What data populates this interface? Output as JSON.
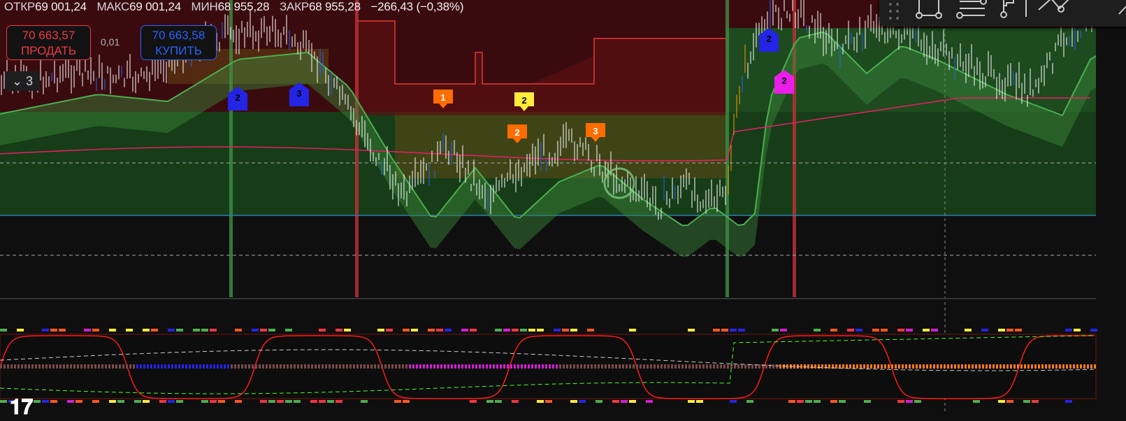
{
  "legend": {
    "open_label": "ОТКР",
    "open": "69 001,24",
    "high_label": "МАКС",
    "high": "69 001,24",
    "low_label": "МИН",
    "low": "68 955,28",
    "close_label": "ЗАКР",
    "close": "68 955,28",
    "change": "−266,43 (−0,38%)"
  },
  "trade": {
    "sell_price": "70 663,57",
    "sell_label": "ПРОДАТЬ",
    "spread": "0,01",
    "buy_price": "70 663,58",
    "buy_label": "КУПИТЬ"
  },
  "collapse": {
    "count": "3"
  },
  "markers": [
    {
      "label": "1",
      "color": "#ff6d00"
    },
    {
      "label": "2",
      "color": "#ffeb3b"
    },
    {
      "label": "2",
      "color": "#ff6d00"
    },
    {
      "label": "3",
      "color": "#ff6d00"
    },
    {
      "label": "2",
      "color": "#2424e6"
    },
    {
      "label": "3",
      "color": "#2424e6"
    },
    {
      "label": "2",
      "color": "#2424e6"
    },
    {
      "label": "2",
      "color": "#e91ee9"
    }
  ],
  "toolbar": {
    "icons": [
      "drag-handle-icon",
      "rectangle-tool-icon",
      "horizontal-lines-icon",
      "flag-tool-icon",
      "trend-line-icon",
      "shape-tool-icon"
    ]
  },
  "colors": {
    "background": "#0f0f0f",
    "bull_zone": "#1b5e20",
    "bear_zone": "#5a0f12",
    "band": "#4caf50",
    "ma": "#e91e63",
    "oscillator": "#ff1a1a"
  },
  "logo": "TV"
}
